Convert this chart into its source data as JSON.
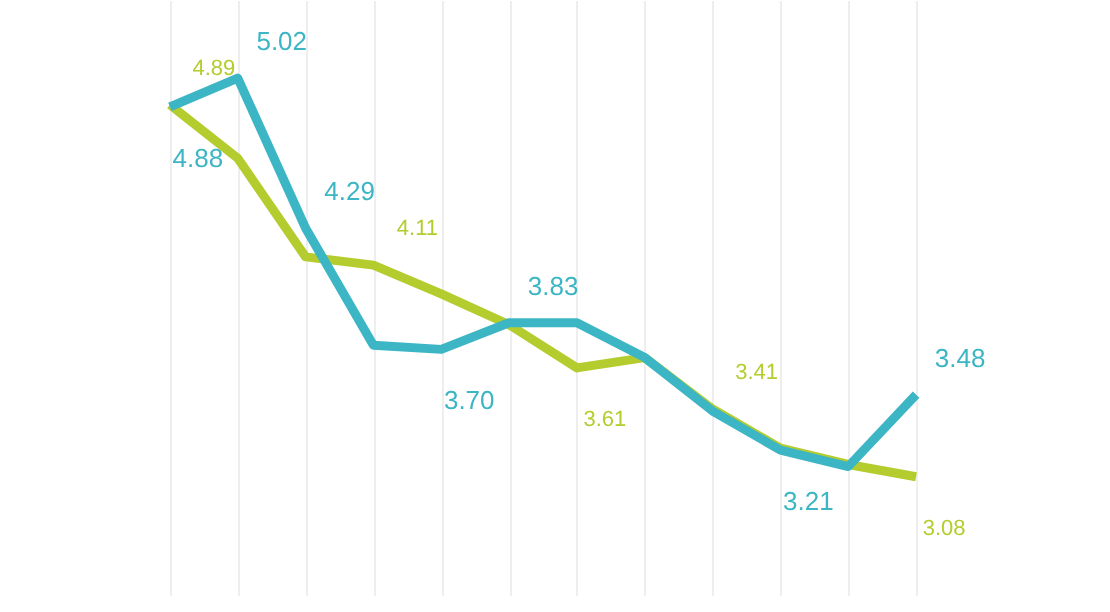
{
  "chart_data": {
    "type": "line",
    "categories": [
      null,
      null,
      null,
      null,
      null,
      null,
      null,
      null,
      null,
      null,
      null,
      null
    ],
    "ylim": [
      2.5,
      5.4
    ],
    "grid": "x",
    "tick_labels": false,
    "line_style": "solid",
    "marker": "none",
    "series": [
      {
        "color": "#b5cc2e",
        "values": [
          4.89,
          4.63,
          4.15,
          4.11,
          3.97,
          3.82,
          3.61,
          3.66,
          3.41,
          3.22,
          3.14,
          3.08
        ],
        "value_labels": [
          "4.89",
          null,
          null,
          "4.11",
          null,
          null,
          "3.61",
          null,
          "3.41",
          null,
          null,
          "3.08"
        ]
      },
      {
        "color": "#3cb5c4",
        "values": [
          4.88,
          5.02,
          4.29,
          3.72,
          3.7,
          3.83,
          3.83,
          3.66,
          3.4,
          3.21,
          3.13,
          3.48
        ],
        "value_labels": [
          "4.88",
          "5.02",
          "4.29",
          null,
          "3.70",
          "3.83",
          null,
          null,
          null,
          "3.21",
          null,
          "3.48"
        ]
      }
    ]
  }
}
